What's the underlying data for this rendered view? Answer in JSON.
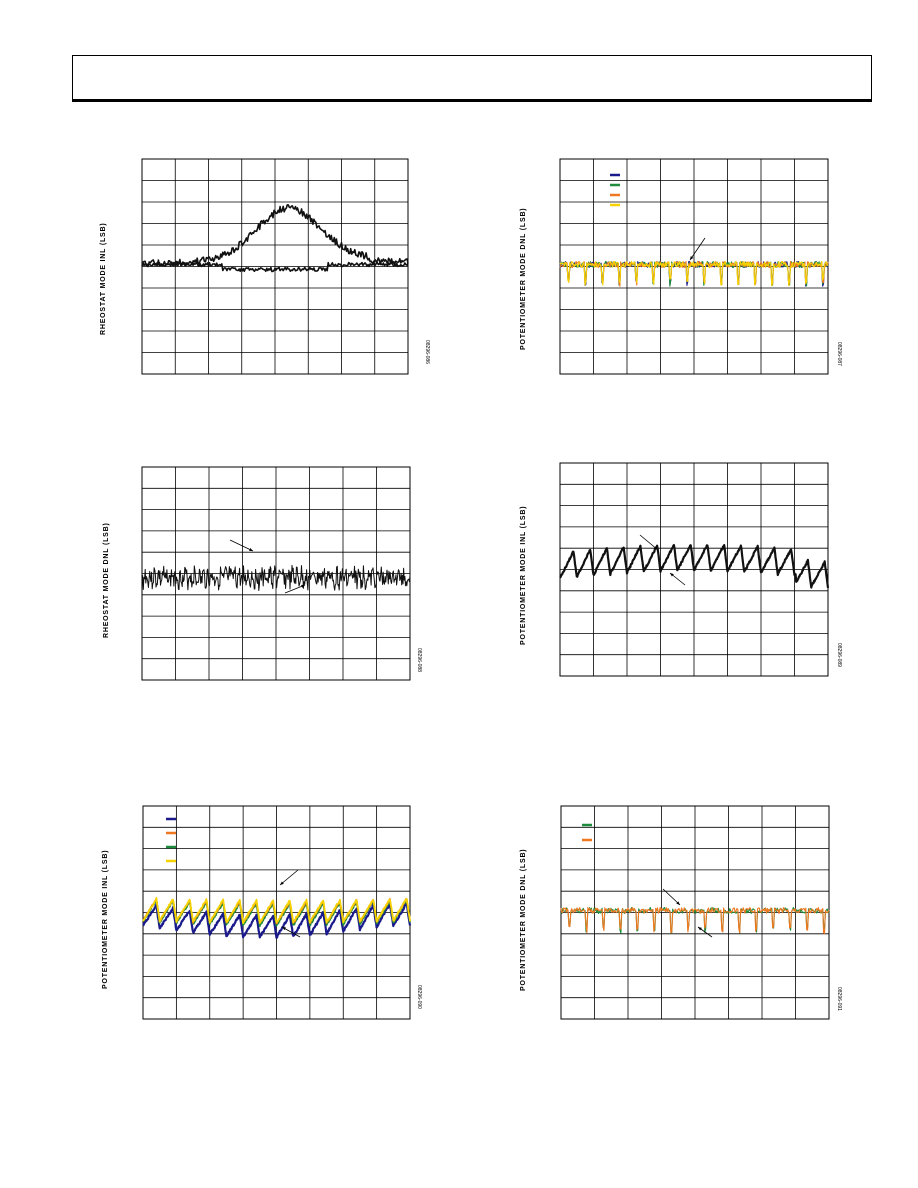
{
  "page": {
    "header_text": ""
  },
  "charts": [
    {
      "id": "p1",
      "ylabel": "RHEOSTAT MODE INL (LSB)",
      "fig_id": "08296-086",
      "trace_style": "mono-two",
      "legend": []
    },
    {
      "id": "p2",
      "ylabel": "POTENTIOMETER MODE DNL (LSB)",
      "fig_id": "08296-087",
      "trace_style": "dnl-spikes",
      "legend_colors": [
        "#1a1a8c",
        "#1e8c3c",
        "#f07820",
        "#f5d200"
      ]
    },
    {
      "id": "p3",
      "ylabel": "RHEOSTAT MODE DNL (LSB)",
      "fig_id": "08296-088",
      "trace_style": "mono-noise",
      "legend": []
    },
    {
      "id": "p4",
      "ylabel": "POTENTIOMETER MODE INL (LSB)",
      "fig_id": "08296-089",
      "trace_style": "mono-saw",
      "legend": []
    },
    {
      "id": "p5",
      "ylabel": "POTENTIOMETER MODE INL (LSB)",
      "fig_id": "08296-090",
      "trace_style": "color-saw",
      "legend_colors": [
        "#1a1a8c",
        "#f07820",
        "#1e8c3c",
        "#f5d200"
      ]
    },
    {
      "id": "p6",
      "ylabel": "POTENTIOMETER MODE DNL (LSB)",
      "fig_id": "08296-091",
      "trace_style": "dnl-spikes-2",
      "legend_colors": [
        "#1e8c3c",
        "#f07820"
      ]
    }
  ],
  "chart_data": [
    {
      "type": "line",
      "title": "",
      "ylabel": "RHEOSTAT MODE INL (LSB)",
      "grid": true,
      "series": [
        {
          "values": [
            0.0,
            0.1,
            0.05,
            0.2,
            0.6,
            1.4,
            1.8,
            2.6,
            2.4,
            1.5,
            0.6,
            0.1,
            0.0
          ]
        },
        {
          "values": [
            0.0,
            0.1,
            0.05,
            0.0,
            -0.05,
            -0.1,
            0.0,
            -0.1,
            -0.05,
            0.0,
            0.0,
            -0.05,
            0.0
          ]
        }
      ]
    },
    {
      "type": "line",
      "title": "",
      "ylabel": "POTENTIOMETER MODE DNL (LSB)",
      "grid": true,
      "series": [
        {
          "values": []
        },
        {
          "values": []
        },
        {
          "values": []
        },
        {
          "values": []
        }
      ]
    },
    {
      "type": "line",
      "title": "",
      "ylabel": "RHEOSTAT MODE DNL (LSB)",
      "grid": true,
      "series": [
        {
          "values": []
        }
      ]
    },
    {
      "type": "line",
      "title": "",
      "ylabel": "POTENTIOMETER MODE INL (LSB)",
      "grid": true,
      "series": [
        {
          "values": []
        }
      ]
    },
    {
      "type": "line",
      "title": "",
      "ylabel": "POTENTIOMETER MODE INL (LSB)",
      "grid": true,
      "series": [
        {
          "values": []
        },
        {
          "values": []
        },
        {
          "values": []
        },
        {
          "values": []
        }
      ]
    },
    {
      "type": "line",
      "title": "",
      "ylabel": "POTENTIOMETER MODE DNL (LSB)",
      "grid": true,
      "series": [
        {
          "values": []
        },
        {
          "values": []
        }
      ]
    }
  ]
}
